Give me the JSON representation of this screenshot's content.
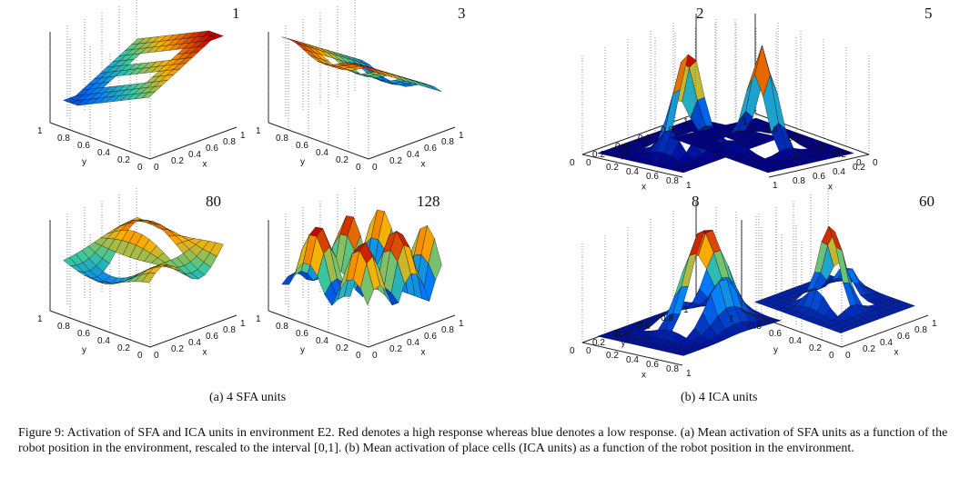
{
  "figure": {
    "panels": [
      {
        "number": "1",
        "group": "sfa"
      },
      {
        "number": "3",
        "group": "sfa"
      },
      {
        "number": "2",
        "group": "ica"
      },
      {
        "number": "5",
        "group": "ica"
      },
      {
        "number": "80",
        "group": "sfa"
      },
      {
        "number": "128",
        "group": "sfa"
      },
      {
        "number": "8",
        "group": "ica"
      },
      {
        "number": "60",
        "group": "ica"
      }
    ],
    "tick_labels": [
      "0",
      "0.2",
      "0.4",
      "0.6",
      "0.8",
      "1"
    ],
    "axis_x": "x",
    "axis_y": "y",
    "subcaption_a": "(a)  4 SFA units",
    "subcaption_b": "(b)  4 ICA units",
    "caption": "Figure 9: Activation of SFA and ICA units in environment E2. Red denotes a high response whereas blue denotes a low response. (a) Mean activation of SFA units as a function of the robot position in the environment, rescaled to the interval [0,1]. (b) Mean activation of place cells (ICA units) as a function of the robot position in the environment.",
    "colors": {
      "high": "#c00000",
      "mid_high": "#ffb000",
      "mid": "#38c8a0",
      "low": "#00008c"
    }
  }
}
